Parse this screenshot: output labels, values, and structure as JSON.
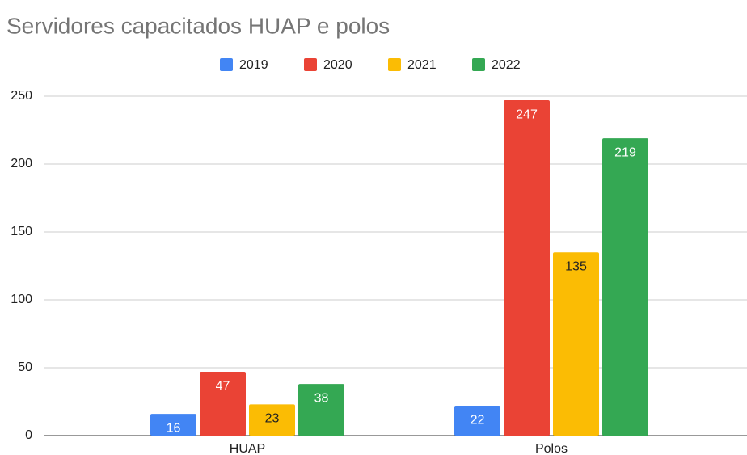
{
  "chart_data": {
    "type": "bar",
    "title": "Servidores capacitados HUAP e polos",
    "categories": [
      "HUAP",
      "Polos"
    ],
    "series": [
      {
        "name": "2019",
        "color": "#4285f4",
        "label_color": "#ffffff",
        "values": [
          16,
          22
        ]
      },
      {
        "name": "2020",
        "color": "#ea4335",
        "label_color": "#ffffff",
        "values": [
          47,
          247
        ]
      },
      {
        "name": "2021",
        "color": "#fbbc04",
        "label_color": "#222222",
        "values": [
          23,
          135
        ]
      },
      {
        "name": "2022",
        "color": "#34a853",
        "label_color": "#ffffff",
        "values": [
          38,
          219
        ]
      }
    ],
    "ylim": [
      0,
      250
    ],
    "yticks": [
      0,
      50,
      100,
      150,
      200,
      250
    ],
    "grid": true,
    "legend": "top"
  }
}
